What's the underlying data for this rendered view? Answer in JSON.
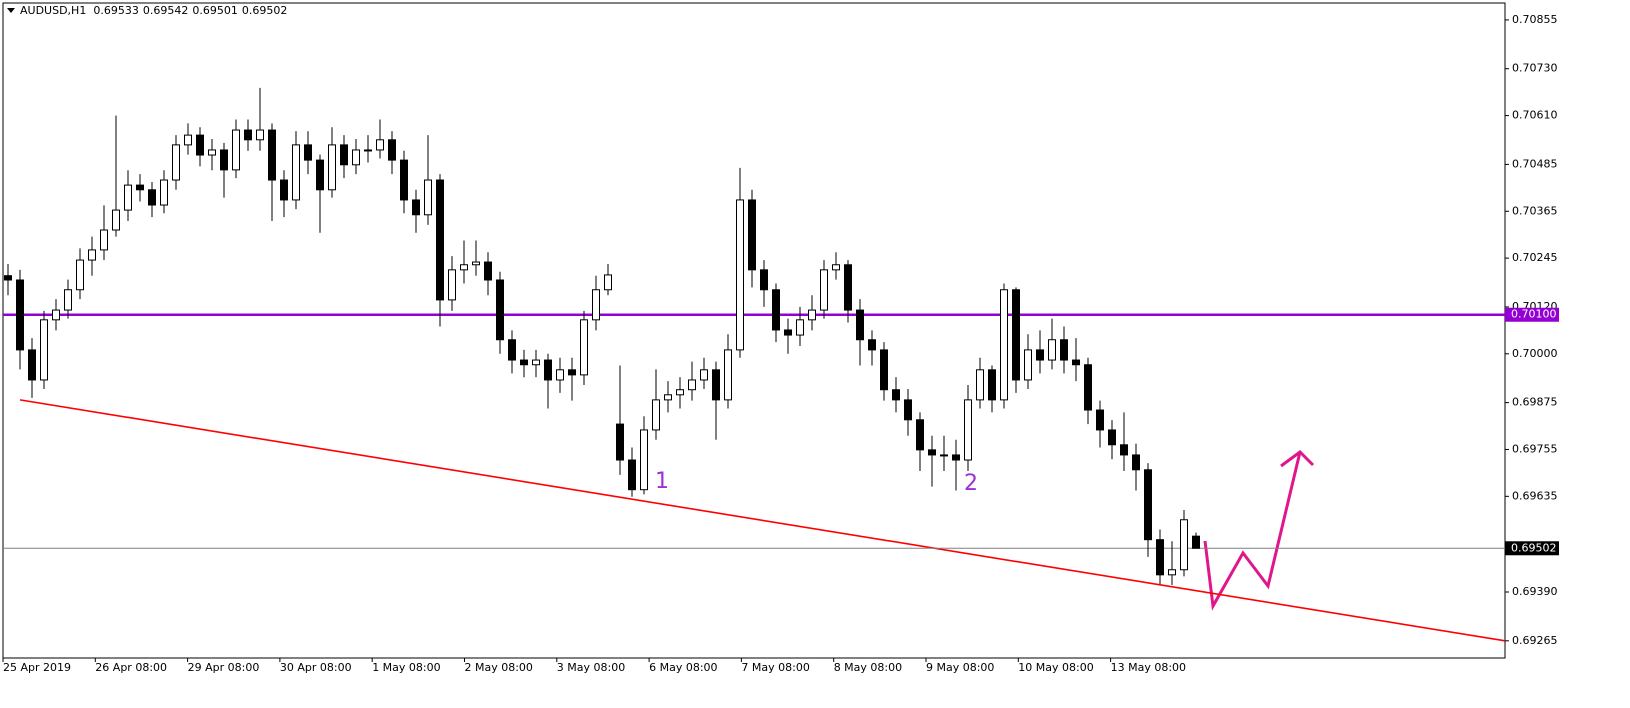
{
  "chart_data": {
    "type": "candlestick",
    "symbol": "AUDUSD,H1",
    "quote": [
      0.69533,
      0.69542,
      0.69501,
      0.69502
    ],
    "ylim": [
      0.69221,
      0.70906
    ],
    "yticks": [
      0.70855,
      {
        "value": 0.7073,
        "label": "0.70730"
      },
      {
        "value": 0.7061,
        "label": "0.70610"
      },
      0.70485,
      0.70365,
      0.70245,
      {
        "value": 0.7012,
        "label": "0.70120"
      },
      {
        "value": 0.7,
        "label": "0.70000"
      },
      0.69875,
      0.69755,
      0.69635,
      {
        "value": 0.6939,
        "label": "0.69390"
      },
      0.69265
    ],
    "xtick_labels": [
      "25 Apr 2019",
      "26 Apr 08:00",
      "29 Apr 08:00",
      "30 Apr 08:00",
      "1 May 08:00",
      "2 May 08:00",
      "3 May 08:00",
      "6 May 08:00",
      "7 May 08:00",
      "8 May 08:00",
      "9 May 08:00",
      "10 May 08:00",
      "13 May 08:00"
    ],
    "up_color": "#ffffff",
    "down_color": "#000000",
    "open": [
      0.702,
      0.70189,
      0.7001,
      0.69933,
      0.70087,
      0.70112,
      0.70164,
      0.7024,
      0.70266,
      0.70317,
      0.70368,
      0.70432,
      0.7042,
      0.70381,
      0.70445,
      0.70535,
      0.7056,
      0.70509,
      0.70522,
      0.70471,
      0.70573,
      0.70548,
      0.70573,
      0.70445,
      0.70394,
      0.70535,
      0.70496,
      0.7042,
      0.70535,
      0.70484,
      0.70522,
      0.70522,
      0.70548,
      0.70496,
      0.70394,
      0.70356,
      0.70445,
      0.70138,
      0.70215,
      0.70228,
      0.70235,
      0.70189,
      0.70036,
      0.69984,
      0.69972,
      0.69984,
      0.69933,
      0.69959,
      0.69946,
      0.70087,
      0.70164,
      0.6982,
      0.69728,
      0.69652,
      0.69805,
      0.69882,
      0.69895,
      0.69908,
      0.69933,
      0.69959,
      0.69882,
      0.7001,
      0.70394,
      0.70215,
      0.70164,
      0.70061,
      0.70048,
      0.70087,
      0.70112,
      0.70215,
      0.70228,
      0.70112,
      0.70036,
      0.7001,
      0.69908,
      0.69882,
      0.69831,
      0.69754,
      0.69741,
      0.69741,
      0.69728,
      0.69882,
      0.69959,
      0.69882,
      0.70164,
      0.69933,
      0.7001,
      0.69984,
      0.70036,
      0.69984,
      0.69972,
      0.69856,
      0.69805,
      0.69767,
      0.69741,
      0.69703,
      0.69524,
      0.69434,
      0.69447,
      0.69533
    ],
    "high": [
      0.7023,
      0.70215,
      0.7004,
      0.7011,
      0.7014,
      0.7019,
      0.7027,
      0.703,
      0.7038,
      0.7061,
      0.7047,
      0.7046,
      0.7044,
      0.7047,
      0.7056,
      0.7059,
      0.7058,
      0.7055,
      0.7054,
      0.706,
      0.706,
      0.70681,
      0.7059,
      0.7047,
      0.7057,
      0.7057,
      0.7051,
      0.7058,
      0.7056,
      0.7055,
      0.7056,
      0.706,
      0.7057,
      0.7052,
      0.7042,
      0.7056,
      0.7046,
      0.7025,
      0.7029,
      0.7029,
      0.7026,
      0.7021,
      0.7006,
      0.7001,
      0.7001,
      0.7,
      0.6999,
      0.6999,
      0.7011,
      0.702,
      0.7023,
      0.6997,
      0.6976,
      0.6984,
      0.6996,
      0.6993,
      0.6994,
      0.6998,
      0.6999,
      0.6998,
      0.7005,
      0.70476,
      0.7042,
      0.7024,
      0.7018,
      0.7009,
      0.7012,
      0.7015,
      0.7024,
      0.7026,
      0.7024,
      0.7014,
      0.7006,
      0.7003,
      0.6994,
      0.6991,
      0.6985,
      0.6979,
      0.6979,
      0.6978,
      0.6992,
      0.6999,
      0.6997,
      0.7018,
      0.7017,
      0.7005,
      0.7006,
      0.7009,
      0.7007,
      0.7004,
      0.6999,
      0.6988,
      0.6983,
      0.6985,
      0.6977,
      0.6972,
      0.6955,
      0.6952,
      0.696,
      0.69542
    ],
    "low": [
      0.7015,
      0.6996,
      0.69887,
      0.6991,
      0.7006,
      0.7009,
      0.7014,
      0.702,
      0.7024,
      0.703,
      0.7034,
      0.7039,
      0.7035,
      0.7036,
      0.7042,
      0.7051,
      0.7048,
      0.7047,
      0.704,
      0.7045,
      0.7052,
      0.7052,
      0.7034,
      0.7035,
      0.7037,
      0.7046,
      0.7031,
      0.704,
      0.7045,
      0.7046,
      0.7049,
      0.705,
      0.7046,
      0.7036,
      0.7031,
      0.7033,
      0.7007,
      0.7011,
      0.7018,
      0.702,
      0.7015,
      0.7,
      0.6995,
      0.6994,
      0.6994,
      0.6986,
      0.699,
      0.6988,
      0.6992,
      0.7006,
      0.7015,
      0.6969,
      0.69634,
      0.6964,
      0.6978,
      0.6985,
      0.6986,
      0.6988,
      0.6991,
      0.6978,
      0.6986,
      0.6999,
      0.7017,
      0.7012,
      0.7003,
      0.7,
      0.7002,
      0.7006,
      0.7009,
      0.7019,
      0.7008,
      0.6997,
      0.6997,
      0.6988,
      0.6985,
      0.6979,
      0.697,
      0.6966,
      0.697,
      0.6965,
      0.697,
      0.6986,
      0.6985,
      0.6986,
      0.699,
      0.6991,
      0.6995,
      0.6996,
      0.6995,
      0.6993,
      0.6982,
      0.6976,
      0.6973,
      0.697,
      0.6965,
      0.6948,
      0.6941,
      0.69408,
      0.6943,
      0.69501
    ],
    "close": [
      0.70189,
      0.7001,
      0.69933,
      0.70087,
      0.70112,
      0.70164,
      0.7024,
      0.70266,
      0.70317,
      0.70368,
      0.70432,
      0.7042,
      0.70381,
      0.70445,
      0.70535,
      0.7056,
      0.70509,
      0.70522,
      0.70471,
      0.70573,
      0.70548,
      0.70573,
      0.70445,
      0.70394,
      0.70535,
      0.70496,
      0.7042,
      0.70535,
      0.70484,
      0.70522,
      0.70522,
      0.70548,
      0.70496,
      0.70394,
      0.70356,
      0.70445,
      0.70138,
      0.70215,
      0.70228,
      0.70235,
      0.70189,
      0.70036,
      0.69984,
      0.69972,
      0.69984,
      0.69933,
      0.69959,
      0.69946,
      0.70087,
      0.70164,
      0.70202,
      0.69728,
      0.69652,
      0.69805,
      0.69882,
      0.69895,
      0.69908,
      0.69933,
      0.69959,
      0.69882,
      0.7001,
      0.70394,
      0.70215,
      0.70164,
      0.70061,
      0.70048,
      0.70087,
      0.70112,
      0.70215,
      0.70228,
      0.70112,
      0.70036,
      0.7001,
      0.69908,
      0.69882,
      0.69831,
      0.69754,
      0.69741,
      0.69741,
      0.69728,
      0.69882,
      0.69959,
      0.69882,
      0.70164,
      0.69933,
      0.7001,
      0.69984,
      0.70036,
      0.69984,
      0.69972,
      0.69856,
      0.69805,
      0.69767,
      0.69741,
      0.69703,
      0.69524,
      0.69434,
      0.69447,
      0.69575,
      0.69502
    ],
    "levels": [
      {
        "value": 0.701,
        "label": "0.70100",
        "color": "#9400d3"
      },
      {
        "value": 0.69502,
        "label": "0.69502",
        "color": "#808080"
      }
    ],
    "trendline": {
      "start": 0.69882,
      "end": 0.69265,
      "color": "#ff0000"
    },
    "annotations": [
      "1",
      "2"
    ]
  }
}
